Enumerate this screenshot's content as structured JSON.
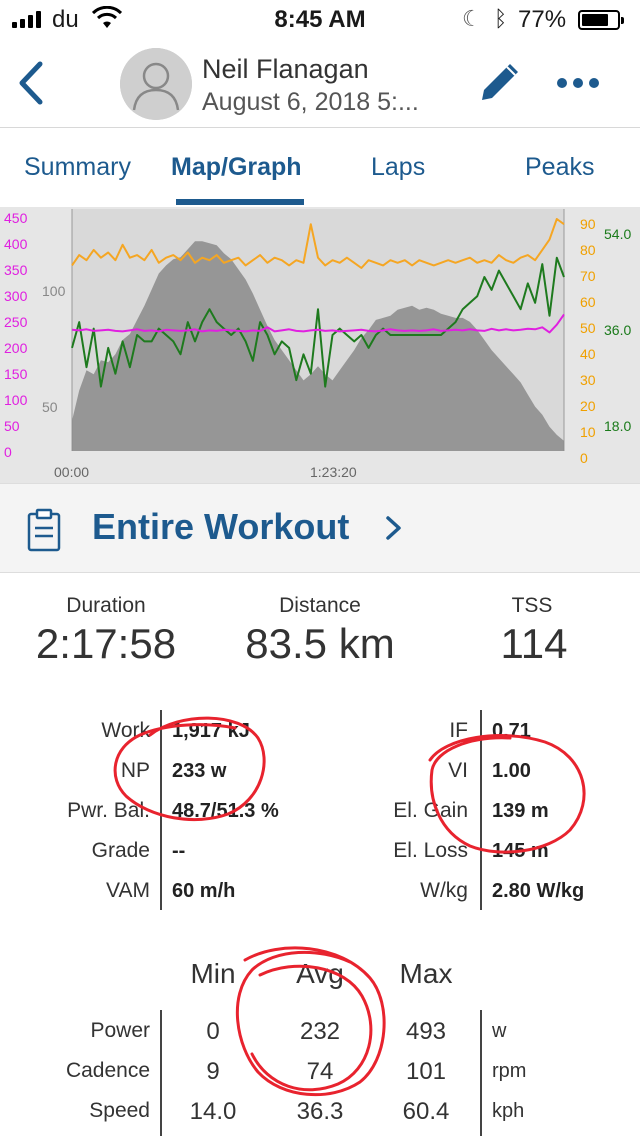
{
  "status": {
    "carrier": "du",
    "time": "8:45 AM",
    "battery": "77%",
    "battery_level": 0.77
  },
  "header": {
    "name": "Neil Flanagan",
    "date": "August 6, 2018   5:..."
  },
  "tabs": [
    {
      "label": "Summary",
      "active": false
    },
    {
      "label": "Map/Graph",
      "active": true
    },
    {
      "label": "Laps",
      "active": false
    },
    {
      "label": "Peaks",
      "active": false
    }
  ],
  "chart_data": {
    "type": "line",
    "x_ticks": [
      "00:00",
      "1:23:20"
    ],
    "axes": {
      "left_power": {
        "ticks": [
          "450",
          "400",
          "350",
          "300",
          "250",
          "200",
          "150",
          "100",
          "50",
          "0"
        ],
        "color": "#e020e0"
      },
      "left_elevation": {
        "ticks": [
          "100",
          "50"
        ],
        "color": "#888888"
      },
      "right_cadence": {
        "ticks": [
          "90",
          "80",
          "70",
          "60",
          "50",
          "40",
          "30",
          "20",
          "10",
          "0"
        ],
        "color": "#f0a000"
      },
      "right_speed": {
        "ticks": [
          "54.0",
          "36.0",
          "18.0"
        ],
        "color": "#1a7a1a"
      }
    },
    "series": [
      {
        "name": "cadence",
        "color": "#f5a623",
        "axis": "right_cadence",
        "range": [
          0,
          90
        ],
        "values": [
          72,
          76,
          74,
          78,
          75,
          77,
          74,
          80,
          75,
          76,
          74,
          78,
          73,
          75,
          76,
          74,
          77,
          73,
          75,
          74,
          76,
          73,
          74,
          75,
          72,
          74,
          76,
          73,
          75,
          74,
          72,
          74,
          73,
          88,
          75,
          72,
          74,
          73,
          75,
          73,
          71,
          74,
          73,
          72,
          74,
          73,
          74,
          72,
          74,
          73,
          72,
          73,
          74,
          73,
          74,
          75,
          73,
          74,
          73,
          76,
          74,
          73,
          75,
          76,
          74,
          78,
          82,
          90,
          88
        ]
      },
      {
        "name": "speed",
        "color": "#1e7a1e",
        "axis": "right_speed",
        "range": [
          0,
          72
        ],
        "values": [
          32,
          40,
          26,
          38,
          20,
          32,
          24,
          34,
          26,
          36,
          34,
          34,
          38,
          36,
          34,
          30,
          40,
          34,
          40,
          44,
          40,
          38,
          36,
          38,
          34,
          28,
          40,
          36,
          30,
          34,
          32,
          22,
          30,
          24,
          44,
          20,
          36,
          38,
          36,
          34,
          36,
          32,
          36,
          38,
          36,
          36,
          36,
          36,
          36,
          36,
          36,
          36,
          38,
          40,
          44,
          46,
          48,
          54,
          50,
          56,
          52,
          48,
          44,
          52,
          46,
          58,
          42,
          60,
          54
        ]
      },
      {
        "name": "power",
        "color": "#e020e0",
        "axis": "left_power",
        "range": [
          0,
          450
        ],
        "values": [
          235,
          234,
          236,
          233,
          234,
          235,
          233,
          232,
          234,
          236,
          233,
          234,
          232,
          235,
          234,
          233,
          234,
          236,
          232,
          234,
          233,
          235,
          234,
          233,
          232,
          234,
          233,
          240,
          232,
          234,
          236,
          233,
          232,
          234,
          235,
          233,
          234,
          232,
          233,
          234,
          235,
          233,
          232,
          234,
          236,
          234,
          233,
          234,
          233,
          234,
          236,
          233,
          234,
          235,
          234,
          236,
          234,
          233,
          237,
          234,
          236,
          234,
          235,
          237,
          236,
          240,
          230,
          245,
          265
        ]
      },
      {
        "name": "elevation",
        "color": "#8a8a8a",
        "axis": "left_elevation",
        "range": [
          0,
          115
        ],
        "values": [
          15,
          30,
          40,
          38,
          45,
          44,
          48,
          55,
          58,
          65,
          72,
          80,
          88,
          92,
          95,
          96,
          100,
          104,
          104,
          103,
          102,
          98,
          95,
          90,
          85,
          78,
          70,
          62,
          55,
          50,
          45,
          40,
          35,
          38,
          42,
          38,
          35,
          40,
          45,
          50,
          56,
          60,
          65,
          66,
          67,
          70,
          71,
          72,
          70,
          71,
          70,
          68,
          67,
          66,
          66,
          64,
          60,
          55,
          50,
          46,
          42,
          38,
          34,
          28,
          22,
          18,
          12,
          8,
          5
        ]
      }
    ]
  },
  "workout": {
    "label": "Entire Workout"
  },
  "summary": [
    {
      "label": "Duration",
      "value": "2:17:58"
    },
    {
      "label": "Distance",
      "value": "83.5 km"
    },
    {
      "label": "TSS",
      "value": "114"
    }
  ],
  "details_left": [
    {
      "label": "Work",
      "value": "1,917 kJ"
    },
    {
      "label": "NP",
      "value": "233 w"
    },
    {
      "label": "Pwr. Bal.",
      "value": "48.7/51.3 %"
    },
    {
      "label": "Grade",
      "value": "--"
    },
    {
      "label": "VAM",
      "value": "60 m/h"
    }
  ],
  "details_right": [
    {
      "label": "IF",
      "value": "0.71"
    },
    {
      "label": "VI",
      "value": "1.00"
    },
    {
      "label": "El. Gain",
      "value": "139 m"
    },
    {
      "label": "El. Loss",
      "value": "145 m"
    },
    {
      "label": "W/kg",
      "value": "2.80 W/kg"
    }
  ],
  "mam": {
    "headers": [
      "Min",
      "Avg",
      "Max"
    ],
    "rows": [
      {
        "label": "Power",
        "min": "0",
        "avg": "232",
        "max": "493",
        "unit": "w"
      },
      {
        "label": "Cadence",
        "min": "9",
        "avg": "74",
        "max": "101",
        "unit": "rpm"
      },
      {
        "label": "Speed",
        "min": "14.0",
        "avg": "36.3",
        "max": "60.4",
        "unit": "kph"
      }
    ]
  },
  "annotation_color": "#e8232e"
}
